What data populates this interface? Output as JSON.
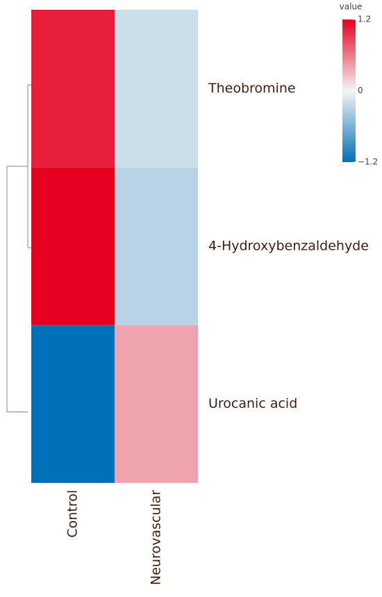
{
  "chart_data": {
    "type": "heatmap",
    "columns": [
      "Control",
      "Neurovascular"
    ],
    "rows": [
      "Theobromine",
      "4-Hydroxybenzaldehyde",
      "Urocanic acid"
    ],
    "values": [
      [
        1.05,
        -0.2
      ],
      [
        1.2,
        -0.3
      ],
      [
        -1.2,
        0.4
      ]
    ],
    "colorbar_title": "value",
    "zlim": [
      -1.2,
      1.2
    ],
    "zticks": [
      1.2,
      0,
      {
        "value": -1.2,
        "label": "−1.2"
      }
    ],
    "colors": [
      "#0070b8",
      "#f4f4f4",
      "#e60020"
    ]
  }
}
